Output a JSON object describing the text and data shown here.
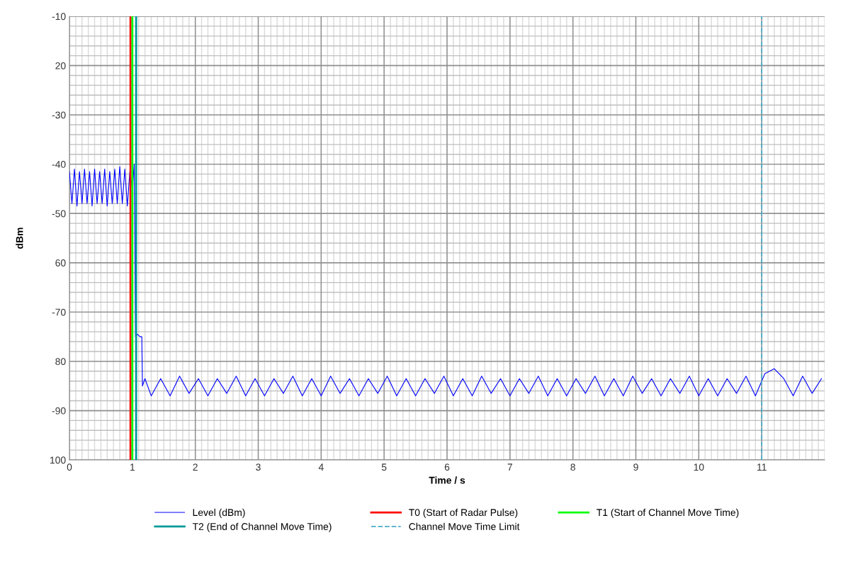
{
  "chart_data": {
    "type": "line",
    "xlabel": "Time / s",
    "ylabel": "dBm",
    "xlim": [
      0,
      12
    ],
    "xticks": [
      0,
      1,
      2,
      3,
      4,
      5,
      6,
      7,
      8,
      9,
      10,
      11
    ],
    "ylim": [
      -100,
      -10
    ],
    "yticks": [
      {
        "value": -10,
        "label": "-10"
      },
      {
        "value": -20,
        "label": "20"
      },
      {
        "value": -30,
        "label": "-30"
      },
      {
        "value": -40,
        "label": "-40"
      },
      {
        "value": -50,
        "label": "-50"
      },
      {
        "value": -60,
        "label": "60"
      },
      {
        "value": -70,
        "label": "-70"
      },
      {
        "value": -80,
        "label": "80"
      },
      {
        "value": -90,
        "label": "-90"
      },
      {
        "value": -100,
        "label": "100"
      }
    ],
    "grid": true,
    "legend": "bottom",
    "marker": "none",
    "line_style": "solid",
    "series": [
      {
        "name": "Level (dBm)",
        "color": "#0000ff",
        "x": [
          0,
          0.04,
          0.08,
          0.12,
          0.16,
          0.2,
          0.24,
          0.28,
          0.32,
          0.36,
          0.4,
          0.44,
          0.48,
          0.52,
          0.56,
          0.6,
          0.64,
          0.68,
          0.72,
          0.76,
          0.8,
          0.84,
          0.88,
          0.92,
          0.96,
          1.0,
          1.03,
          1.05,
          1.08,
          1.12,
          1.15,
          1.16,
          1.2,
          1.3,
          1.45,
          1.6,
          1.75,
          1.9,
          2.05,
          2.2,
          2.35,
          2.5,
          2.65,
          2.8,
          2.95,
          3.1,
          3.25,
          3.4,
          3.55,
          3.7,
          3.85,
          4.0,
          4.15,
          4.3,
          4.45,
          4.6,
          4.75,
          4.9,
          5.05,
          5.2,
          5.35,
          5.5,
          5.65,
          5.8,
          5.95,
          6.1,
          6.25,
          6.4,
          6.55,
          6.7,
          6.85,
          7.0,
          7.15,
          7.3,
          7.45,
          7.6,
          7.75,
          7.9,
          8.05,
          8.2,
          8.35,
          8.5,
          8.65,
          8.8,
          8.95,
          9.1,
          9.25,
          9.4,
          9.55,
          9.7,
          9.85,
          10.0,
          10.15,
          10.3,
          10.45,
          10.6,
          10.75,
          10.9,
          11.05,
          11.2,
          11.35,
          11.5,
          11.65,
          11.8,
          11.95
        ],
        "values": [
          -41.5,
          -48,
          -41,
          -48.5,
          -41.5,
          -48,
          -41,
          -48,
          -41.5,
          -48.5,
          -41,
          -48,
          -41.5,
          -48,
          -41,
          -48.5,
          -41.5,
          -48,
          -41,
          -48,
          -40.5,
          -48,
          -41,
          -48.5,
          -41.5,
          -45,
          -40,
          -75,
          -74.5,
          -75,
          -75,
          -85,
          -83.5,
          -87,
          -83.5,
          -87,
          -83,
          -86.5,
          -83.5,
          -87,
          -83.5,
          -86.5,
          -83,
          -87,
          -83.5,
          -87,
          -83.5,
          -86.5,
          -83,
          -87,
          -83.5,
          -87,
          -83,
          -86.5,
          -83.5,
          -87,
          -83.5,
          -86.5,
          -83,
          -87,
          -83.5,
          -87,
          -83.5,
          -86.5,
          -83,
          -87,
          -83.5,
          -87,
          -83,
          -86.5,
          -83.5,
          -87,
          -83.5,
          -86.5,
          -83,
          -87,
          -83.5,
          -87,
          -83.5,
          -86.5,
          -83,
          -87,
          -83.5,
          -87,
          -83,
          -86.5,
          -83.5,
          -87,
          -83.5,
          -86.5,
          -83,
          -87,
          -83.5,
          -87,
          -83.5,
          -86.5,
          -83,
          -87,
          -82.5,
          -81.5,
          -83.5,
          -87,
          -83,
          -86.5,
          -83.5
        ]
      }
    ],
    "ref_lines": [
      {
        "axis": "x",
        "value": 0.97,
        "label": "T0 (Start of Radar Pulse)",
        "color": "#ff0000",
        "line_style": "solid"
      },
      {
        "axis": "x",
        "value": 1.0,
        "label": "T1 (Start of Channel Move Time)",
        "color": "#00ff00",
        "line_style": "solid"
      },
      {
        "axis": "x",
        "value": 1.06,
        "label": "T2 (End of Channel Move Time)",
        "color": "#009999",
        "line_style": "solid"
      },
      {
        "axis": "x",
        "value": 11,
        "label": "Channel Move Time Limit",
        "color": "#4bacc6",
        "line_style": "dashed"
      }
    ]
  }
}
